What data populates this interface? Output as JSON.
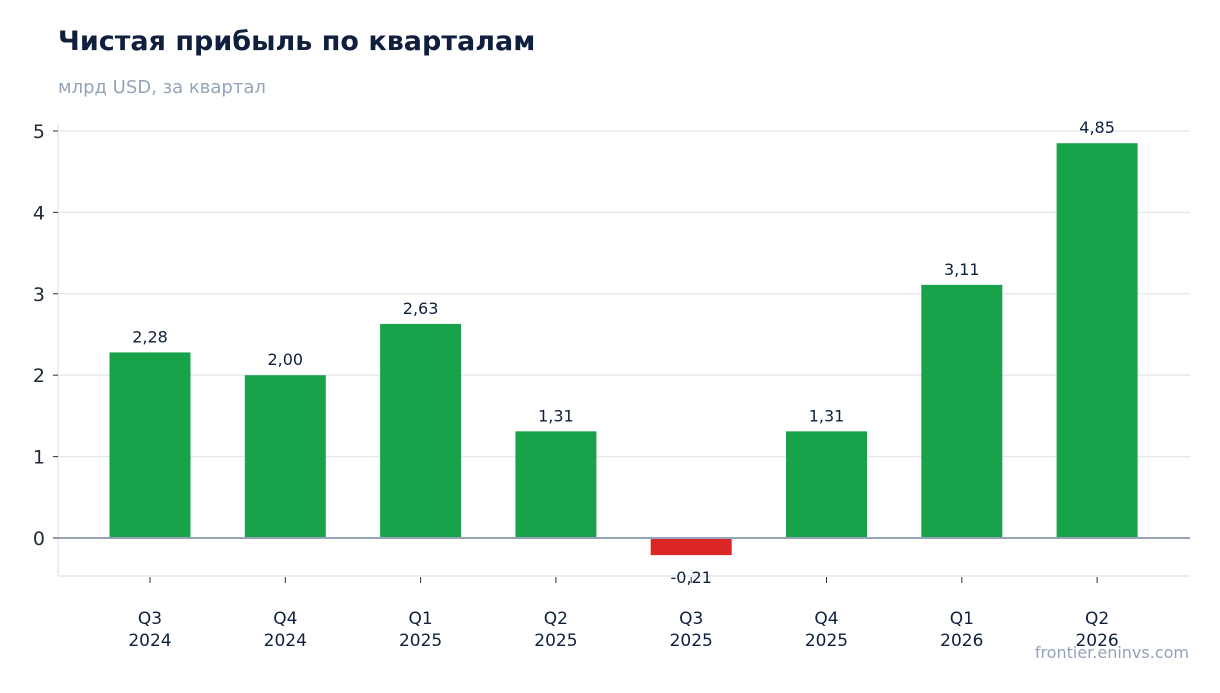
{
  "header": {
    "title": "Чистая прибыль по кварталам",
    "subtitle": "млрд USD, за квартал"
  },
  "footer": {
    "source": "frontier.eninvs.com"
  },
  "colors": {
    "positive": "#18a34a",
    "negative": "#dc2626",
    "grid": "#e5e7eb",
    "zero_line": "#94a3b8",
    "text": "#0f1f3d"
  },
  "chart_data": {
    "type": "bar",
    "title": "Чистая прибыль по кварталам",
    "subtitle": "млрд USD, за квартал",
    "xlabel": "",
    "ylabel": "",
    "categories": [
      [
        "Q3",
        "2024"
      ],
      [
        "Q4",
        "2024"
      ],
      [
        "Q1",
        "2025"
      ],
      [
        "Q2",
        "2025"
      ],
      [
        "Q3",
        "2025"
      ],
      [
        "Q4",
        "2025"
      ],
      [
        "Q1",
        "2026"
      ],
      [
        "Q2",
        "2026"
      ]
    ],
    "values": [
      2.28,
      2.0,
      2.63,
      1.31,
      -0.21,
      1.31,
      3.11,
      4.85
    ],
    "data_labels": [
      "2,28",
      "2,00",
      "2,63",
      "1,31",
      "-0,21",
      "1,31",
      "3,11",
      "4,85"
    ],
    "ylim": [
      -0.45,
      5.1
    ],
    "yticks": [
      0,
      1,
      2,
      3,
      4,
      5
    ],
    "grid": true,
    "legend": "none"
  }
}
